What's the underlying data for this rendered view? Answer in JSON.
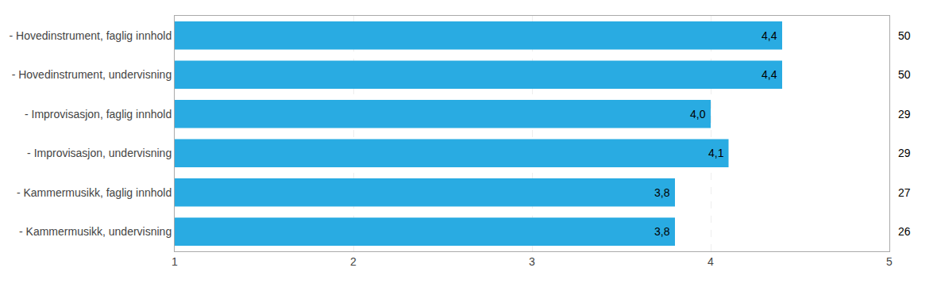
{
  "chart_data": {
    "type": "bar",
    "orientation": "horizontal",
    "categories": [
      "- Kammermusikk, undervisning",
      "- Kammermusikk, faglig innhold",
      "- Improvisasjon, undervisning",
      "- Improvisasjon, faglig innhold",
      "- Hovedinstrument, undervisning",
      "- Hovedinstrument, faglig innhold"
    ],
    "values": [
      3.8,
      3.8,
      4.1,
      4.0,
      4.4,
      4.4
    ],
    "value_labels": [
      "3,8",
      "3,8",
      "4,1",
      "4,0",
      "4,4",
      "4,4"
    ],
    "data_labels": true,
    "n": [
      26,
      27,
      29,
      29,
      50,
      50
    ],
    "color": "#29ABE2",
    "xlim": [
      1,
      5
    ],
    "xticks": [
      1,
      2,
      3,
      4,
      5
    ],
    "grid": true
  }
}
